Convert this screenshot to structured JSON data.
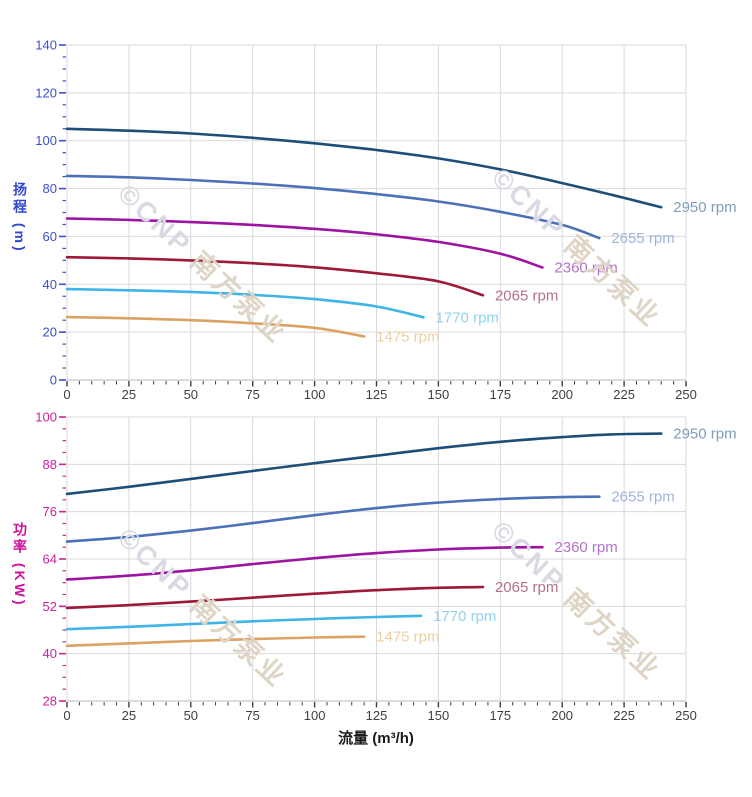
{
  "watermark": {
    "logo": "©",
    "brand": "CNP",
    "cn": "南方泵业",
    "latin_color": "#d7dae2",
    "cn_color": "#ded5c6"
  },
  "layout_colors": {
    "grid": "#d9d9d9",
    "axis_line": "#b7b7b7",
    "x_tick": "#3f3f3f",
    "x_tick_label": "#3f3f3f"
  },
  "chart_data": [
    {
      "type": "line",
      "title": "",
      "ylabel": "扬程 (m)",
      "xlabel": "",
      "xlim": [
        0,
        250
      ],
      "ylim": [
        0,
        140
      ],
      "x_ticks": [
        0,
        25,
        50,
        75,
        100,
        125,
        150,
        175,
        200,
        225,
        250
      ],
      "y_ticks": [
        0,
        20,
        40,
        60,
        80,
        100,
        120,
        140
      ],
      "x_minor_step": 5,
      "y_minor_step": 5,
      "grid": true,
      "legend_position": "line-end-labels",
      "axis_color": "#3b50d2",
      "series": [
        {
          "name": "2950 rpm",
          "color": "#1c4e78",
          "label_color": "#7e9dbe",
          "points": [
            [
              0,
              105
            ],
            [
              25,
              104.2
            ],
            [
              50,
              103
            ],
            [
              75,
              101.2
            ],
            [
              100,
              98.9
            ],
            [
              125,
              96.1
            ],
            [
              150,
              92.6
            ],
            [
              175,
              88
            ],
            [
              200,
              82.3
            ],
            [
              220,
              77.4
            ],
            [
              240,
              72.2
            ]
          ]
        },
        {
          "name": "2655 rpm",
          "color": "#4d71b8",
          "label_color": "#9fb3dc",
          "points": [
            [
              0,
              85.3
            ],
            [
              25,
              84.7
            ],
            [
              50,
              83.6
            ],
            [
              75,
              82.1
            ],
            [
              100,
              80.2
            ],
            [
              125,
              77.7
            ],
            [
              150,
              74.6
            ],
            [
              175,
              70.3
            ],
            [
              200,
              64.8
            ],
            [
              215,
              59.3
            ]
          ]
        },
        {
          "name": "2360 rpm",
          "color": "#9c14a0",
          "label_color": "#b472c8",
          "points": [
            [
              0,
              67.5
            ],
            [
              25,
              66.9
            ],
            [
              50,
              66
            ],
            [
              75,
              64.8
            ],
            [
              100,
              63.2
            ],
            [
              125,
              60.9
            ],
            [
              150,
              57.7
            ],
            [
              175,
              52.8
            ],
            [
              192,
              47
            ]
          ]
        },
        {
          "name": "2065 rpm",
          "color": "#9e1838",
          "label_color": "#b5708a",
          "points": [
            [
              0,
              51.3
            ],
            [
              25,
              50.8
            ],
            [
              50,
              50
            ],
            [
              75,
              48.8
            ],
            [
              100,
              47.1
            ],
            [
              125,
              44.6
            ],
            [
              150,
              41.2
            ],
            [
              168,
              35.4
            ]
          ]
        },
        {
          "name": "1770 rpm",
          "color": "#3fb4e6",
          "label_color": "#90d3f0",
          "points": [
            [
              0,
              38
            ],
            [
              25,
              37.5
            ],
            [
              50,
              36.8
            ],
            [
              75,
              35.6
            ],
            [
              100,
              33.8
            ],
            [
              125,
              30.7
            ],
            [
              144,
              26.2
            ]
          ]
        },
        {
          "name": "1475 rpm",
          "color": "#dca263",
          "label_color": "#eccfa5",
          "points": [
            [
              0,
              26.3
            ],
            [
              25,
              25.8
            ],
            [
              50,
              25
            ],
            [
              75,
              23.7
            ],
            [
              100,
              21.8
            ],
            [
              120,
              18.2
            ]
          ]
        }
      ]
    },
    {
      "type": "line",
      "title": "",
      "ylabel": "功率 (KW)",
      "xlabel": "流量 (m³/h)",
      "xlim": [
        0,
        250
      ],
      "ylim": [
        28,
        100
      ],
      "x_ticks": [
        0,
        25,
        50,
        75,
        100,
        125,
        150,
        175,
        200,
        225,
        250
      ],
      "y_ticks": [
        28,
        40,
        52,
        64,
        76,
        88,
        100
      ],
      "x_minor_step": 5,
      "y_minor_step": 3,
      "grid": true,
      "legend_position": "line-end-labels",
      "axis_color": "#d1219f",
      "series": [
        {
          "name": "2950 rpm",
          "color": "#1c4e78",
          "label_color": "#7e9dbe",
          "points": [
            [
              0,
              80.5
            ],
            [
              25,
              82.3
            ],
            [
              50,
              84.3
            ],
            [
              75,
              86.3
            ],
            [
              100,
              88.3
            ],
            [
              125,
              90.2
            ],
            [
              150,
              92.1
            ],
            [
              175,
              93.7
            ],
            [
              200,
              94.9
            ],
            [
              220,
              95.6
            ],
            [
              240,
              95.8
            ]
          ]
        },
        {
          "name": "2655 rpm",
          "color": "#4d71b8",
          "label_color": "#9fb3dc",
          "points": [
            [
              0,
              68.4
            ],
            [
              25,
              69.6
            ],
            [
              50,
              71.2
            ],
            [
              75,
              73.1
            ],
            [
              100,
              75.1
            ],
            [
              125,
              76.9
            ],
            [
              150,
              78.3
            ],
            [
              175,
              79.2
            ],
            [
              200,
              79.7
            ],
            [
              215,
              79.8
            ]
          ]
        },
        {
          "name": "2360 rpm",
          "color": "#9c14a0",
          "label_color": "#b472c8",
          "points": [
            [
              0,
              58.8
            ],
            [
              25,
              59.8
            ],
            [
              50,
              61.1
            ],
            [
              75,
              62.7
            ],
            [
              100,
              64.2
            ],
            [
              125,
              65.5
            ],
            [
              150,
              66.4
            ],
            [
              175,
              66.9
            ],
            [
              192,
              67
            ]
          ]
        },
        {
          "name": "2065 rpm",
          "color": "#9e1838",
          "label_color": "#b5708a",
          "points": [
            [
              0,
              51.6
            ],
            [
              25,
              52.3
            ],
            [
              50,
              53.2
            ],
            [
              75,
              54.2
            ],
            [
              100,
              55.2
            ],
            [
              125,
              56.1
            ],
            [
              150,
              56.7
            ],
            [
              168,
              56.9
            ]
          ]
        },
        {
          "name": "1770 rpm",
          "color": "#3fb4e6",
          "label_color": "#90d3f0",
          "points": [
            [
              0,
              46.2
            ],
            [
              25,
              46.8
            ],
            [
              50,
              47.5
            ],
            [
              75,
              48.2
            ],
            [
              100,
              48.8
            ],
            [
              125,
              49.3
            ],
            [
              143,
              49.6
            ]
          ]
        },
        {
          "name": "1475 rpm",
          "color": "#dca263",
          "label_color": "#eccfa5",
          "points": [
            [
              0,
              42
            ],
            [
              25,
              42.6
            ],
            [
              50,
              43.2
            ],
            [
              75,
              43.7
            ],
            [
              100,
              44.1
            ],
            [
              120,
              44.3
            ]
          ]
        }
      ]
    }
  ]
}
